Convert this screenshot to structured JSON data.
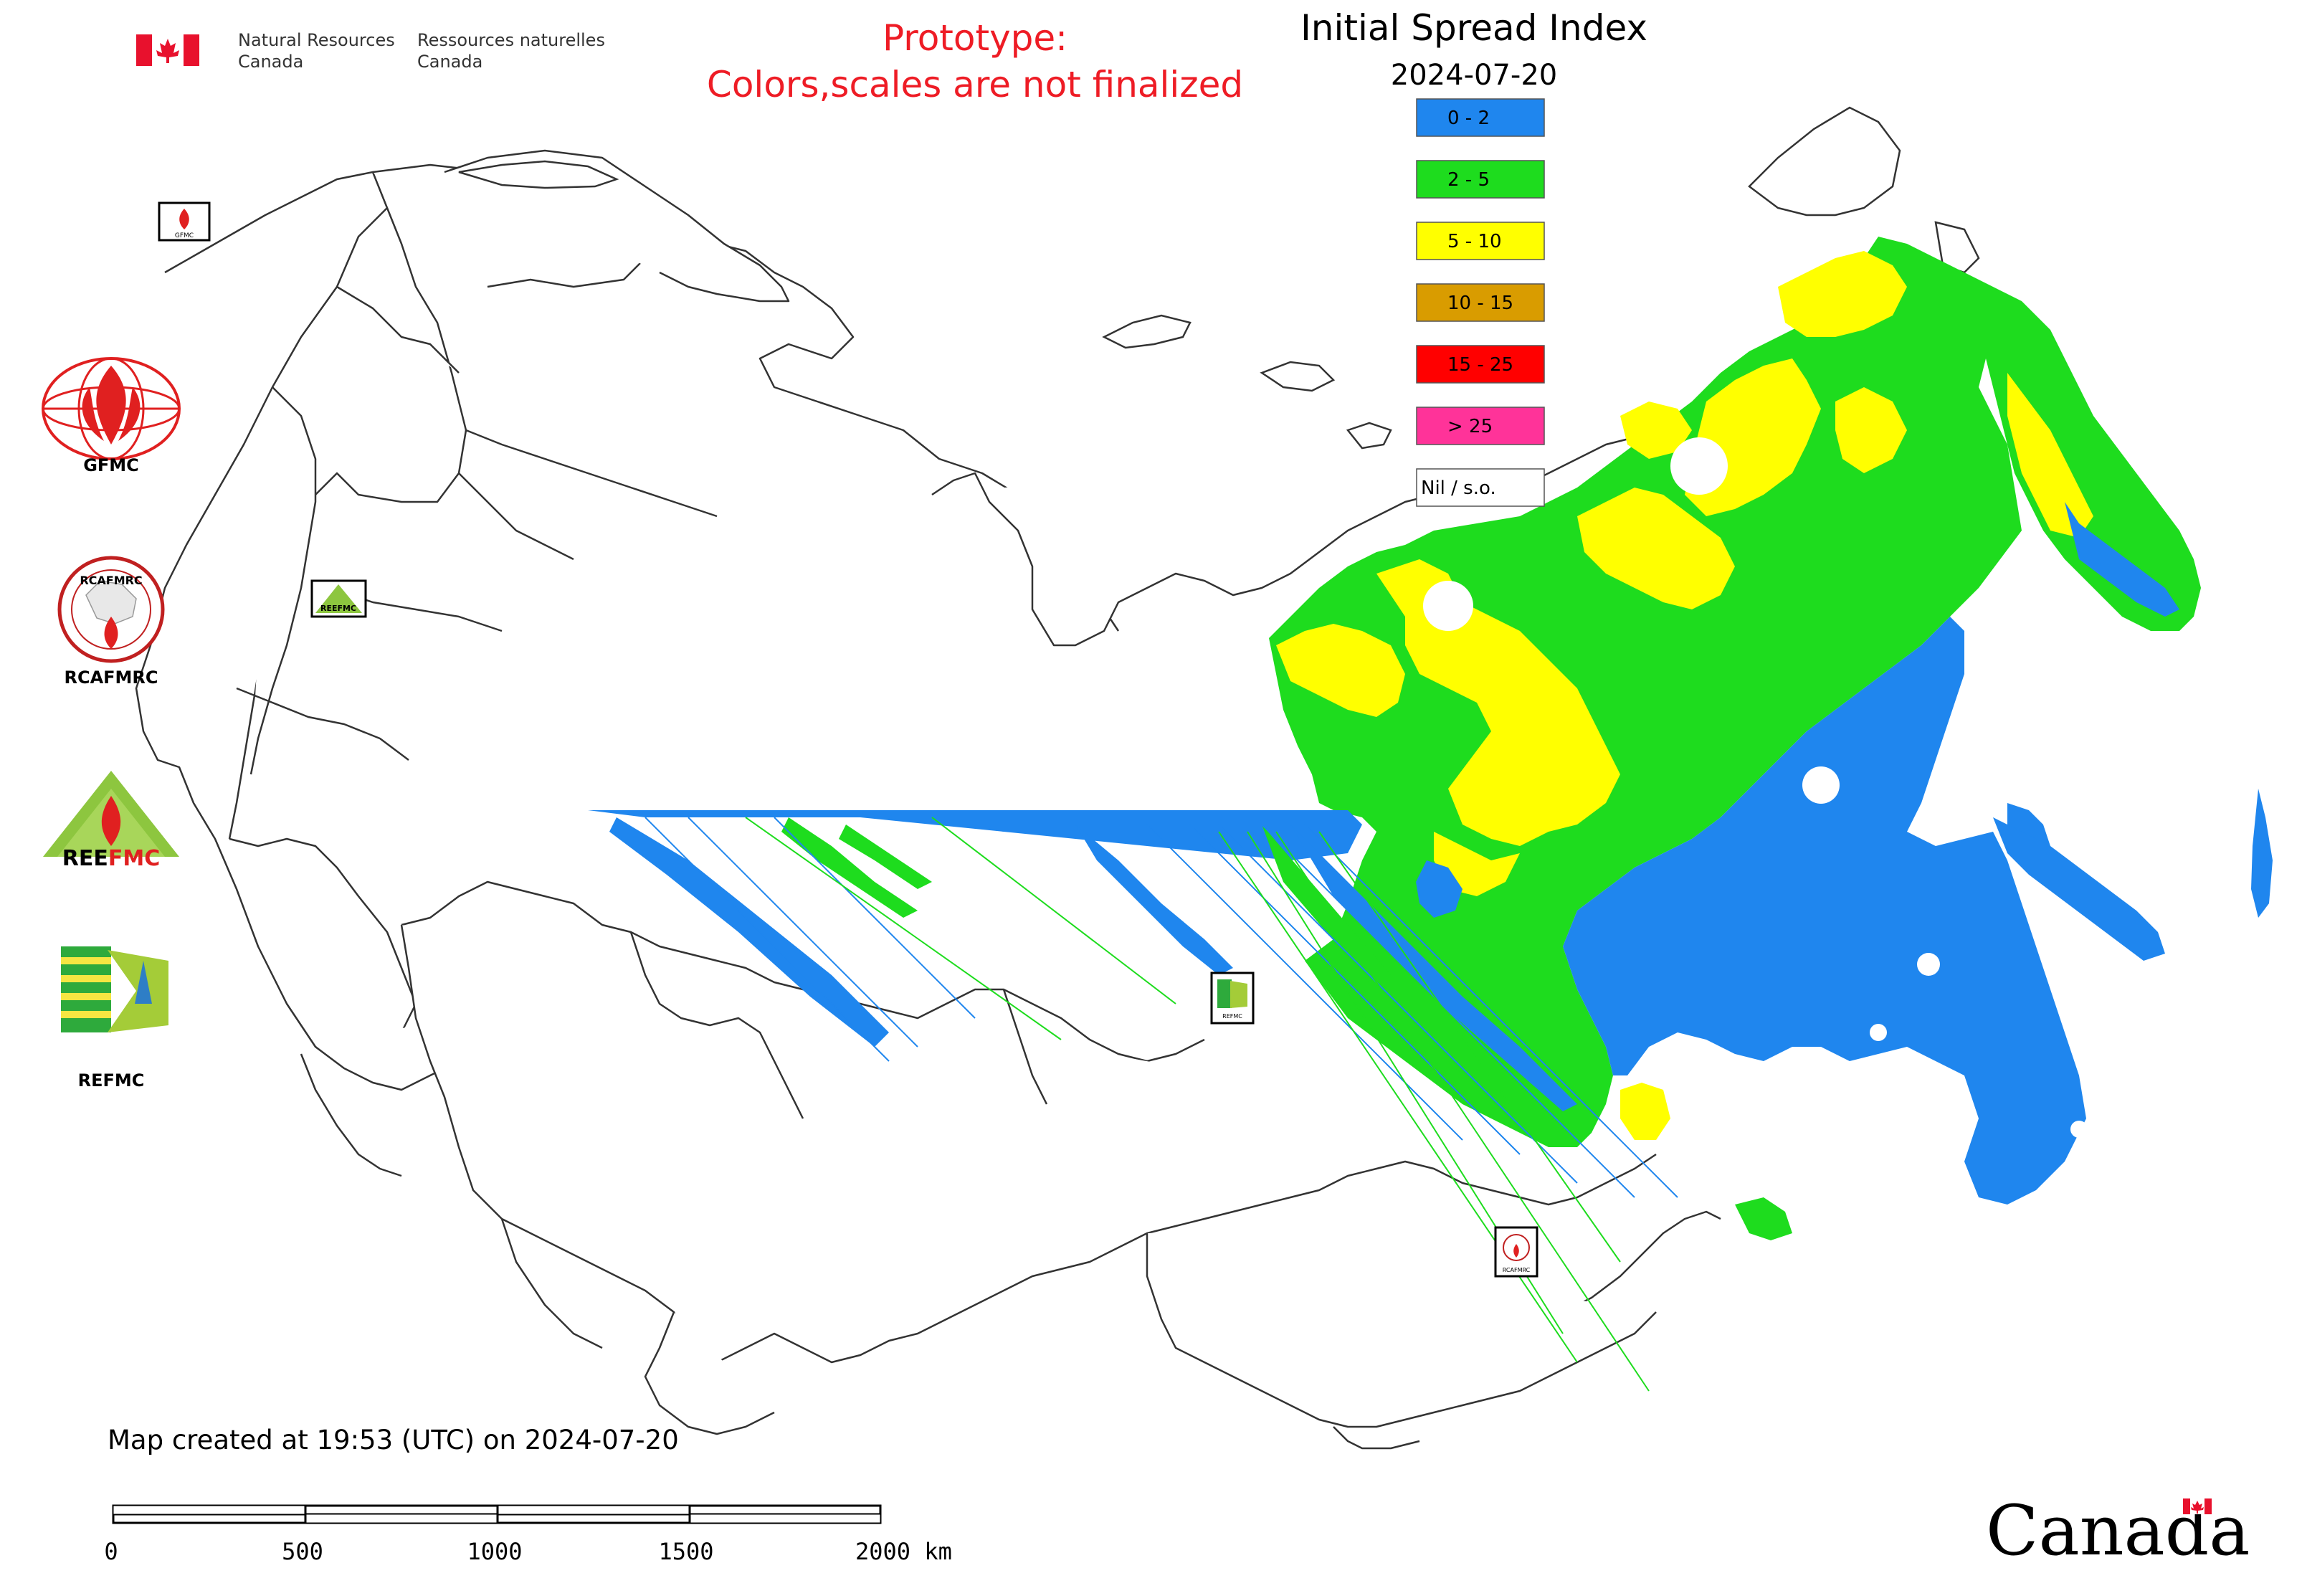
{
  "header": {
    "agency_en_line1": "Natural Resources",
    "agency_en_line2": "Canada",
    "agency_fr_line1": "Ressources naturelles",
    "agency_fr_line2": "Canada"
  },
  "prototype_notice": {
    "line1": "Prototype:",
    "line2": "Colors,scales are not finalized",
    "color": "#ee1c25"
  },
  "map_title": "Initial Spread Index",
  "map_date": "2024-07-20",
  "legend": [
    {
      "label": "0 - 2",
      "color": "#1f86ee"
    },
    {
      "label": "2 - 5",
      "color": "#1edc1e"
    },
    {
      "label": "5 - 10",
      "color": "#ffff00"
    },
    {
      "label": "10 - 15",
      "color": "#d99c00"
    },
    {
      "label": "15 - 25",
      "color": "#ff0000"
    },
    {
      "label": "> 25",
      "color": "#ff3399"
    },
    {
      "label": "Nil / s.o.",
      "color": "#ffffff"
    }
  ],
  "side_logos": [
    {
      "caption": "GFMC"
    },
    {
      "caption": "RCAFMRC"
    },
    {
      "caption": "REEFMC"
    },
    {
      "caption": "REFMC"
    }
  ],
  "map_markers": [
    {
      "icon": "gfmc-marker-icon",
      "caption": "GFMC"
    },
    {
      "icon": "reefmc-marker-icon",
      "caption": "REEFMC"
    },
    {
      "icon": "refmc-marker-icon",
      "caption": "REFMC"
    },
    {
      "icon": "rcafmrc-marker-icon",
      "caption": "RCAFMRC"
    }
  ],
  "footer": {
    "created_text": "Map created at 19:53 (UTC) on 2024-07-20",
    "scale_ticks": [
      "0",
      "500",
      "1000",
      "1500",
      "2000 km"
    ],
    "wordmark": "Canada"
  }
}
